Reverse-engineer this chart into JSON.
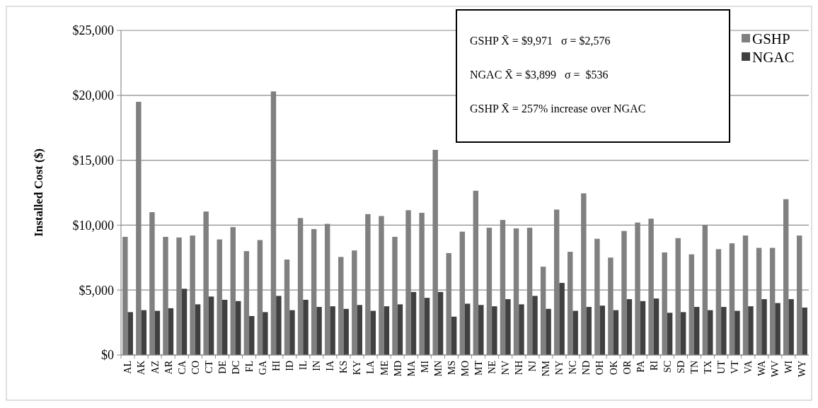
{
  "chart_data": {
    "type": "bar",
    "ylabel": "Installed Cost ($)",
    "categories": [
      "AL",
      "AK",
      "AZ",
      "AR",
      "CA",
      "CO",
      "CT",
      "DE",
      "DC",
      "FL",
      "GA",
      "HI",
      "ID",
      "IL",
      "IN",
      "IA",
      "KS",
      "KY",
      "LA",
      "ME",
      "MD",
      "MA",
      "MI",
      "MN",
      "MS",
      "MO",
      "MT",
      "NE",
      "NV",
      "NH",
      "NJ",
      "NM",
      "NY",
      "NC",
      "ND",
      "OH",
      "OK",
      "OR",
      "PA",
      "RI",
      "SC",
      "SD",
      "TN",
      "TX",
      "UT",
      "VT",
      "VA",
      "WA",
      "WV",
      "WI",
      "WY"
    ],
    "series": [
      {
        "name": "GSHP",
        "color": "#808080",
        "values": [
          9100,
          19500,
          11000,
          9100,
          9050,
          9200,
          11050,
          8900,
          9850,
          8000,
          8850,
          20300,
          7350,
          10550,
          9700,
          10100,
          7550,
          8050,
          10850,
          10700,
          9100,
          11150,
          10950,
          15800,
          7850,
          9500,
          12650,
          9800,
          10400,
          9750,
          9800,
          6800,
          11200,
          7950,
          12450,
          8950,
          7500,
          9550,
          10200,
          10500,
          7900,
          9000,
          7750,
          10000,
          8150,
          8600,
          9200,
          8250,
          8250,
          12000,
          9200
        ]
      },
      {
        "name": "NGAC",
        "color": "#404040",
        "values": [
          3300,
          3450,
          3400,
          3600,
          5100,
          3900,
          4500,
          4250,
          4150,
          3000,
          3300,
          4550,
          3450,
          4250,
          3700,
          3750,
          3550,
          3850,
          3400,
          3750,
          3900,
          4850,
          4400,
          4850,
          2950,
          3950,
          3850,
          3750,
          4300,
          3900,
          4550,
          3550,
          5550,
          3400,
          3700,
          3800,
          3450,
          4300,
          4150,
          4350,
          3250,
          3300,
          3700,
          3450,
          3700,
          3400,
          3750,
          4300,
          4000,
          4300,
          3650
        ]
      }
    ],
    "ylim": [
      0,
      25000
    ],
    "yticks": [
      {
        "value": 0,
        "label": "$0"
      },
      {
        "value": 5000,
        "label": "$5,000"
      },
      {
        "value": 10000,
        "label": "$10,000"
      },
      {
        "value": 15000,
        "label": "$15,000"
      },
      {
        "value": 20000,
        "label": "$20,000"
      },
      {
        "value": 25000,
        "label": "$25,000"
      }
    ],
    "grid": "y",
    "legend": "top right",
    "annotations": [
      "GSHP X̄ = $9,971   σ = $2,576",
      "NGAC X̄ = $3,899   σ =  $536",
      "GSHP X̄ = 257% increase over NGAC"
    ]
  }
}
